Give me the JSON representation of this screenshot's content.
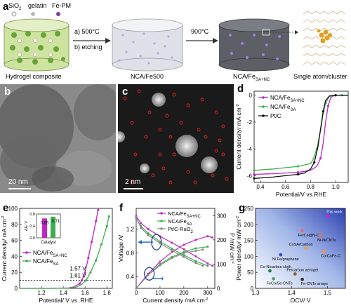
{
  "panel_a": {
    "label": "a",
    "legend": {
      "sio2": "SiO",
      "sio2_sub": "2",
      "gelatin": "gelatin",
      "fepm": "Fe-PM"
    },
    "step1": "a) 500°C",
    "step2": "b) etching",
    "step3": "900°C",
    "captions": [
      "Hydrogel composite",
      "NCA/Fe500",
      "NCA/Fe",
      "Single atom/cluster"
    ],
    "nca_fe_sub": "SA+NC"
  },
  "panel_b": {
    "label": "b",
    "scale": "20 nm"
  },
  "panel_c": {
    "label": "c",
    "scale": "2 nm"
  },
  "panel_d": {
    "label": "d",
    "chart_data": {
      "type": "line",
      "xlabel": "Potential/V vs.RHE",
      "ylabel": "Current density/ mA cm",
      "ylabel_sup": "-2",
      "xlim": [
        0.35,
        1.1
      ],
      "ylim": [
        -6.5,
        0.3
      ],
      "xticks": [
        "0.4",
        "0.6",
        "0.8",
        "1.0"
      ],
      "yticks": [
        "-6",
        "-4",
        "-2",
        "0"
      ],
      "series": [
        {
          "name": "NCA/Fe",
          "sub": "SA+NC",
          "color": "#c026c0",
          "x": [
            0.35,
            0.5,
            0.6,
            0.7,
            0.8,
            0.85,
            0.88,
            0.9,
            0.92,
            0.94,
            0.96,
            0.98,
            1.0,
            1.05,
            1.1
          ],
          "y": [
            -5.9,
            -5.85,
            -5.8,
            -5.75,
            -5.6,
            -5.3,
            -4.7,
            -3.6,
            -2.0,
            -0.8,
            -0.2,
            -0.05,
            0.0,
            0.0,
            0.0
          ]
        },
        {
          "name": "NCA/Fe",
          "sub": "SA",
          "color": "#3cb04a",
          "x": [
            0.35,
            0.5,
            0.6,
            0.7,
            0.8,
            0.82,
            0.85,
            0.88,
            0.9,
            0.92,
            0.95,
            1.0,
            1.05,
            1.1
          ],
          "y": [
            -5.6,
            -5.5,
            -5.4,
            -5.3,
            -5.1,
            -4.8,
            -4.0,
            -2.6,
            -1.4,
            -0.6,
            -0.1,
            0.0,
            0.0,
            0.0
          ]
        },
        {
          "name": "Pt/C",
          "color": "#111111",
          "x": [
            0.35,
            0.5,
            0.6,
            0.7,
            0.75,
            0.8,
            0.83,
            0.86,
            0.88,
            0.9,
            0.92,
            0.95,
            1.0,
            1.1
          ],
          "y": [
            -6.2,
            -6.1,
            -6.0,
            -5.9,
            -5.8,
            -5.5,
            -5.0,
            -3.8,
            -2.5,
            -1.2,
            -0.4,
            -0.05,
            0.0,
            0.0
          ]
        }
      ]
    }
  },
  "panel_e": {
    "label": "e",
    "chart_data": {
      "type": "line",
      "xlabel": "Potential/ V vs. RHE",
      "ylabel": "Current density/ mA cm",
      "ylabel_sup": "-2",
      "xlim": [
        1.0,
        1.85
      ],
      "ylim": [
        0,
        100
      ],
      "xticks": [
        "1.2",
        "1.4",
        "1.6",
        "1.8"
      ],
      "yticks": [
        "0",
        "20",
        "40",
        "60",
        "80",
        "100"
      ],
      "dashed_y": 10,
      "annotations": [
        "1.57 V",
        "1.61 V"
      ],
      "series": [
        {
          "name": "NCA/Fe",
          "sub": "SA+NC",
          "color": "#c026c0",
          "x": [
            1.0,
            1.3,
            1.45,
            1.5,
            1.55,
            1.57,
            1.6,
            1.63,
            1.66,
            1.7,
            1.72
          ],
          "y": [
            0,
            0,
            0.5,
            2,
            6,
            10,
            20,
            38,
            58,
            84,
            98
          ]
        },
        {
          "name": "NCA/Fe",
          "sub": "SA",
          "color": "#3cb04a",
          "x": [
            1.0,
            1.3,
            1.45,
            1.52,
            1.57,
            1.61,
            1.65,
            1.7,
            1.75,
            1.8,
            1.82
          ],
          "y": [
            0,
            0,
            0.3,
            1.5,
            5,
            10,
            20,
            35,
            55,
            78,
            90
          ]
        }
      ],
      "inset": {
        "type": "bar",
        "xlabel": "Catalyst",
        "ylabel": "ΔE/ V",
        "values": [
          0.65,
          0.71
        ],
        "labels": [
          "0.65",
          "0.71"
        ],
        "colors": [
          "#c026c0",
          "#3cb04a"
        ],
        "yticks": [
          "0.0",
          "0.4",
          "0.8"
        ],
        "ylim": [
          0,
          0.8
        ]
      }
    }
  },
  "panel_f": {
    "label": "f",
    "chart_data": {
      "type": "line",
      "xlabel": "Current density /mA cm",
      "xlabel_sup": "-2",
      "ylabel_left": "Voltage /V",
      "ylabel_right": "P /mW cm",
      "ylabel_right_sup": "-2",
      "xlim": [
        0,
        330
      ],
      "ylim_left": [
        0.2,
        1.55
      ],
      "ylim_right": [
        0,
        330
      ],
      "xticks": [
        "0",
        "100",
        "200",
        "300"
      ],
      "yticks_left": [
        "0.4",
        "0.8",
        "1.2"
      ],
      "yticks_right": [
        "0",
        "100",
        "200",
        "300"
      ],
      "series": [
        {
          "name": "NCA/Fe",
          "sub": "SA+NC",
          "color": "#c026c0",
          "voltage_x": [
            0,
            20,
            50,
            100,
            150,
            200,
            250,
            300,
            320
          ],
          "voltage_y": [
            1.42,
            1.3,
            1.2,
            1.08,
            0.97,
            0.86,
            0.74,
            0.62,
            0.58
          ],
          "power_x": [
            0,
            50,
            100,
            150,
            200,
            250,
            300,
            320
          ],
          "power_y": [
            0,
            60,
            110,
            150,
            180,
            200,
            215,
            210
          ]
        },
        {
          "name": "NCA/Fe",
          "sub": "SA",
          "color": "#3cb04a",
          "voltage_x": [
            0,
            20,
            50,
            100,
            150,
            200,
            250,
            300
          ],
          "voltage_y": [
            1.38,
            1.25,
            1.13,
            0.99,
            0.87,
            0.76,
            0.66,
            0.58
          ],
          "power_x": [
            0,
            50,
            100,
            150,
            200,
            250,
            300
          ],
          "power_y": [
            0,
            55,
            100,
            130,
            150,
            165,
            172
          ]
        },
        {
          "name": "Pt/C-RuO",
          "sub": "2",
          "color": "#888888",
          "voltage_x": [
            0,
            20,
            50,
            100,
            150,
            200,
            250,
            280
          ],
          "voltage_y": [
            1.4,
            1.22,
            1.1,
            0.96,
            0.84,
            0.73,
            0.63,
            0.58
          ],
          "power_x": [
            0,
            50,
            100,
            150,
            200,
            250,
            280
          ],
          "power_y": [
            0,
            55,
            95,
            125,
            145,
            155,
            160
          ]
        }
      ]
    }
  },
  "panel_g": {
    "label": "g",
    "chart_data": {
      "type": "scatter",
      "xlabel": "OCV/ V",
      "ylabel": "Power density/ mW cm",
      "ylabel_sup": "-2",
      "xlim": [
        1.3,
        1.55
      ],
      "ylim": [
        0,
        250
      ],
      "xticks": [
        "1.3",
        "1.4",
        "1.5"
      ],
      "yticks": [
        "0",
        "50",
        "100",
        "150",
        "200",
        "250"
      ],
      "points": [
        {
          "label": "This work",
          "x": 1.5,
          "y": 225,
          "color": "#d020d0"
        },
        {
          "label": "Fe/Co@N-C",
          "x": 1.43,
          "y": 180,
          "color": "#e07070"
        },
        {
          "label": "Ni-N/CNTs",
          "x": 1.48,
          "y": 165,
          "color": "#e87050"
        },
        {
          "label": "CoSA/Carbon",
          "x": 1.44,
          "y": 125,
          "color": "#f0a040"
        },
        {
          "label": "Co/CoFe-C",
          "x": 1.49,
          "y": 115,
          "color": "#ff9040"
        },
        {
          "label": "Ni Fe/graphene",
          "x": 1.37,
          "y": 105,
          "color": "#3050c0"
        },
        {
          "label": "Co-N/carbon cloth",
          "x": 1.34,
          "y": 55,
          "color": "#208040"
        },
        {
          "label": "Fe/carbon aerogel",
          "x": 1.41,
          "y": 45,
          "color": "#906030"
        },
        {
          "label": "FeCo/Se-CNTs",
          "x": 1.35,
          "y": 30,
          "color": "#60a060"
        },
        {
          "label": "Fe-CNTs arrays",
          "x": 1.43,
          "y": 28,
          "color": "#333333"
        }
      ]
    }
  }
}
